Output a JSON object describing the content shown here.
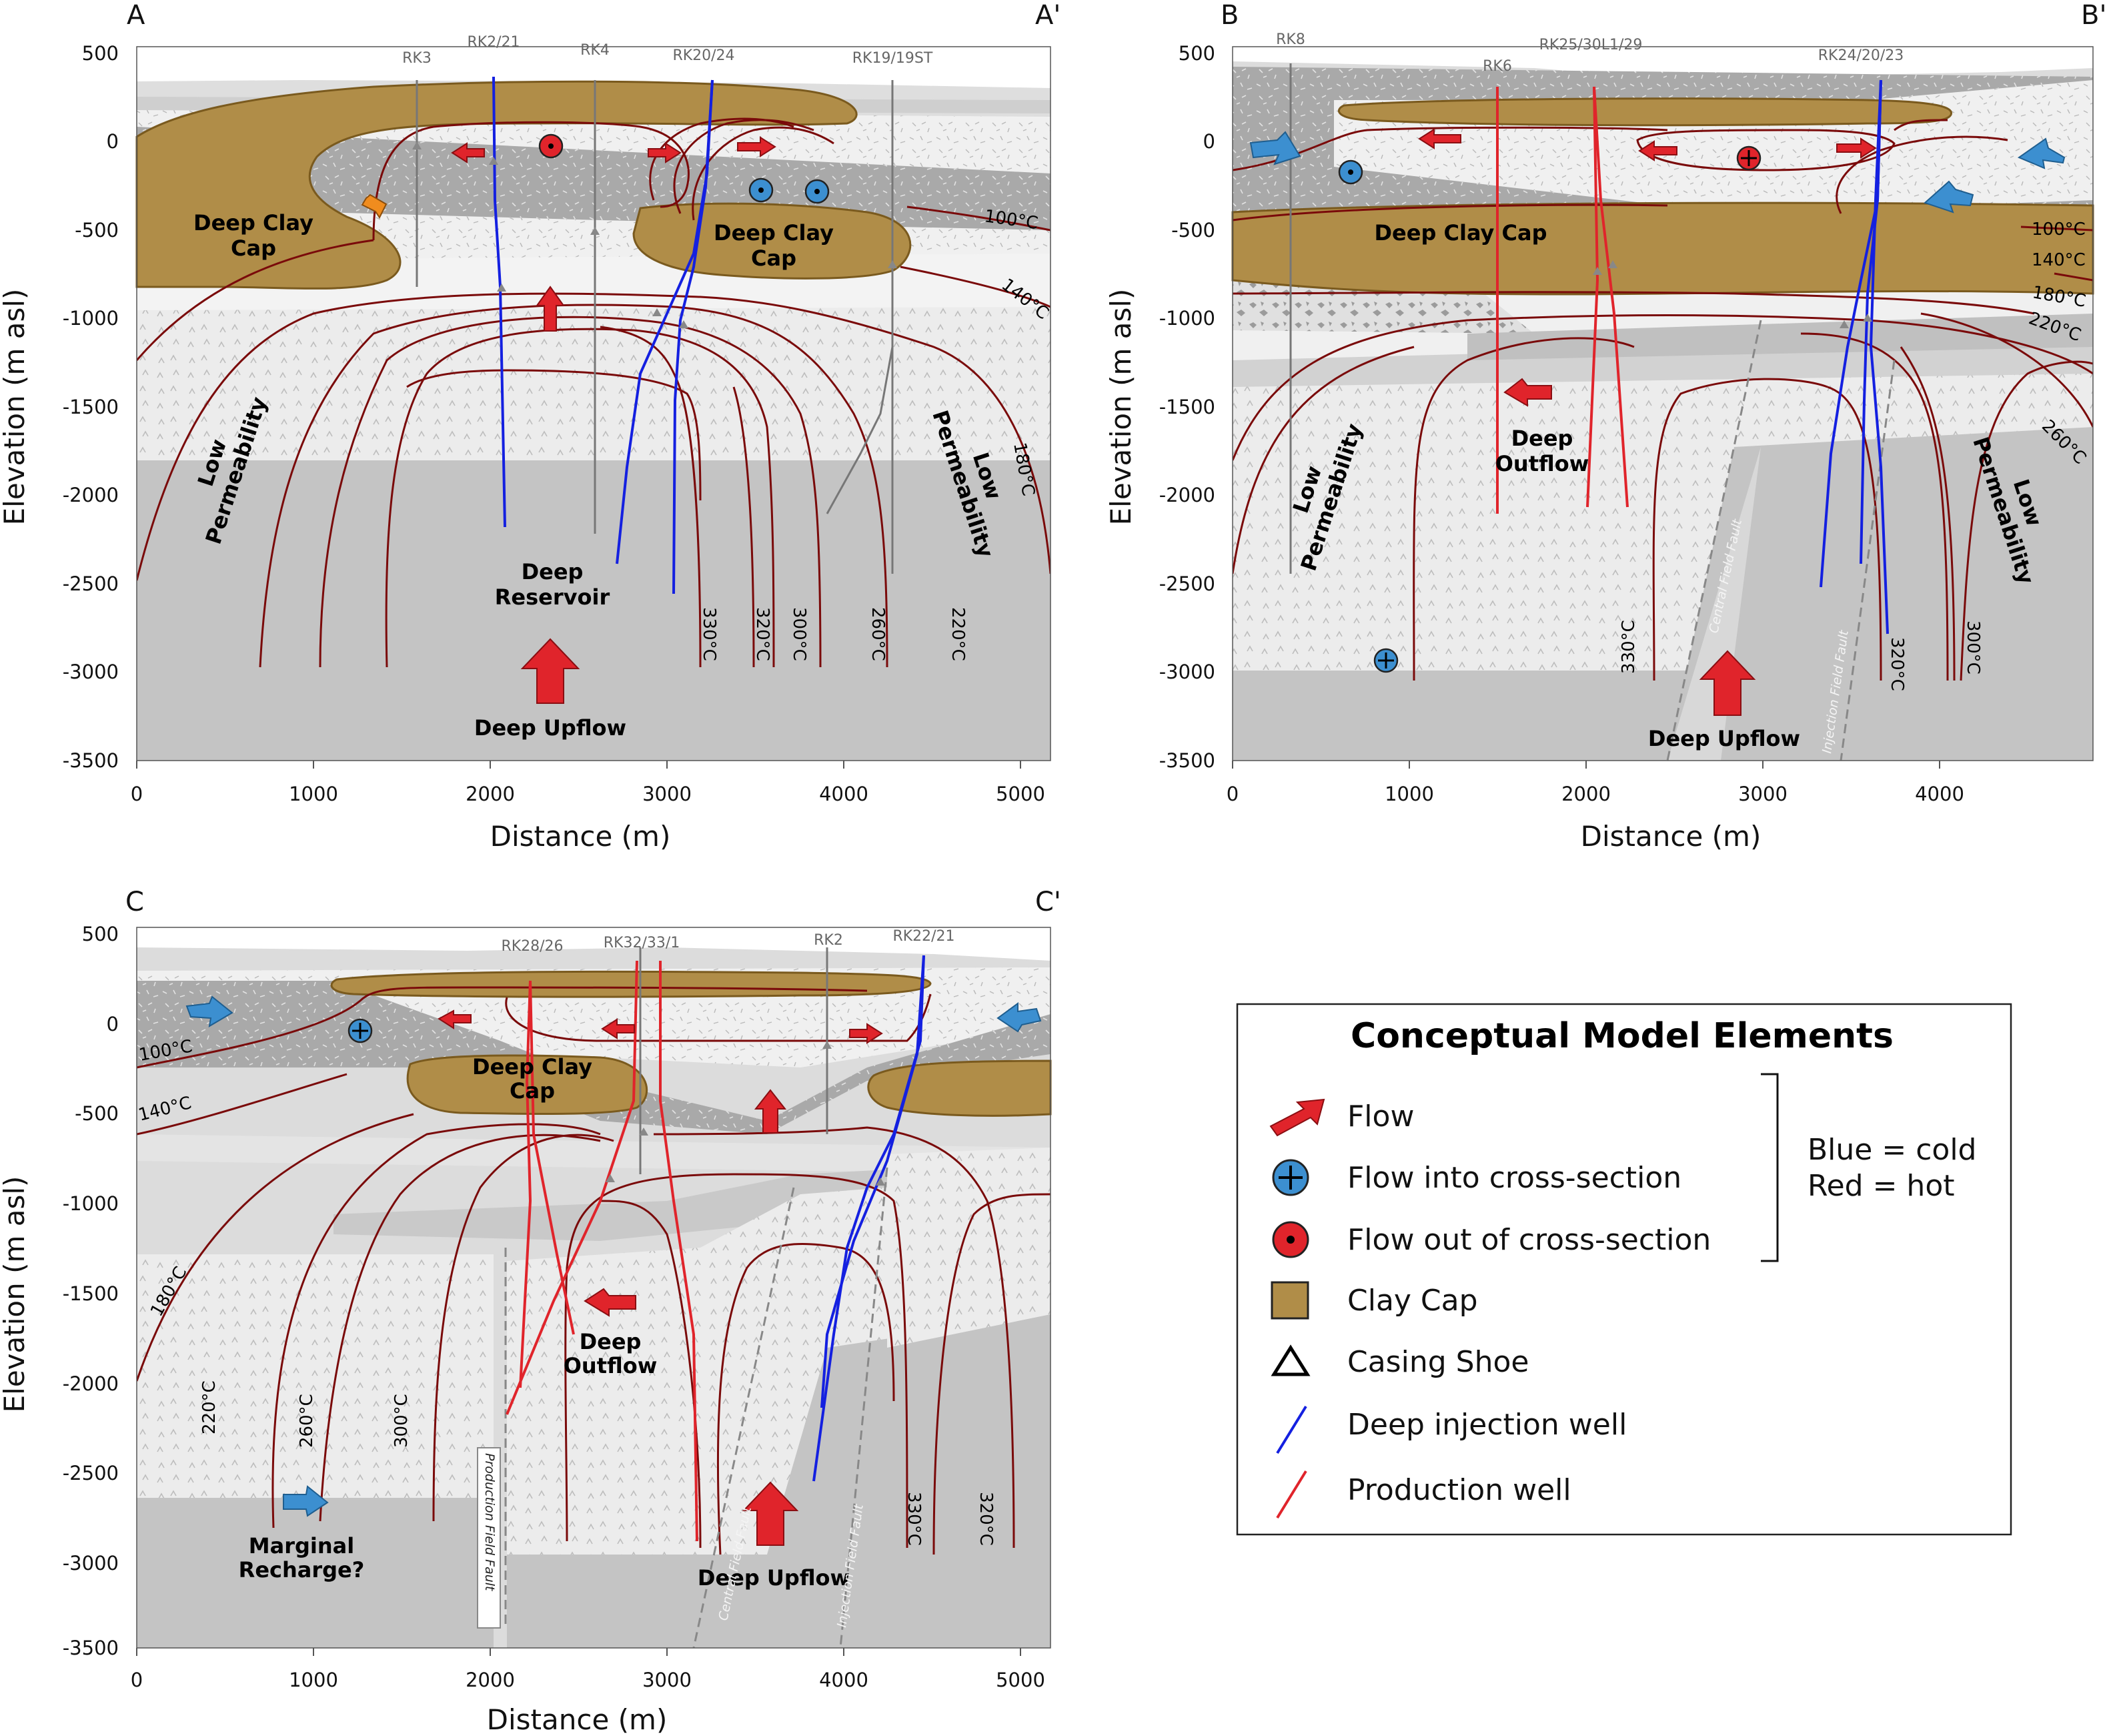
{
  "colors": {
    "clay": "#b08d48",
    "clay_stroke": "#7a5a1e",
    "isotherm": "#7a0a0a",
    "hot": "#e0242b",
    "cold": "#3c8fd0",
    "injection": "#1420e0",
    "production": "#e0242b",
    "grey_dark": "#b8b8b8",
    "grey_mid": "#c9c9c9",
    "grey_light": "#e9e9e9",
    "well_grey": "#777777",
    "orange": "#f08c1e"
  },
  "icons": {
    "flow": "red-arrow-icon",
    "flow_into": "circle-plus-icon",
    "flow_out": "circle-dot-icon",
    "clay": "clay-square-icon",
    "casing": "triangle-icon",
    "injection": "blue-line-icon",
    "production": "red-line-icon"
  },
  "shared": {
    "xlabel": "Distance (m)",
    "ylabel": "Elevation (m asl)",
    "y_ticks": [
      "500",
      "0",
      "-500",
      "-1000",
      "-1500",
      "-2000",
      "-2500",
      "-3000",
      "-3500"
    ]
  },
  "panels": {
    "A": {
      "left_label": "A",
      "right_label": "A'",
      "x_ticks": [
        "0",
        "1000",
        "2000",
        "3000",
        "4000",
        "5000"
      ],
      "wells": [
        "RK3",
        "RK2/21",
        "RK4",
        "RK20/24",
        "RK19/19ST"
      ],
      "annotations": {
        "clay_left": [
          "Deep Clay",
          "Cap"
        ],
        "clay_right": [
          "Deep Clay",
          "Cap"
        ],
        "low_perm_left": [
          "Low",
          "Permeability"
        ],
        "low_perm_right": [
          "Low",
          "Permeability"
        ],
        "reservoir": [
          "Deep",
          "Reservoir"
        ],
        "upflow": "Deep Upflow"
      },
      "isotherms": [
        "100°C",
        "140°C",
        "180°C",
        "330°C",
        "320°C",
        "300°C",
        "260°C",
        "220°C"
      ]
    },
    "B": {
      "left_label": "B",
      "right_label": "B'",
      "x_ticks": [
        "0",
        "1000",
        "2000",
        "3000",
        "4000"
      ],
      "wells": [
        "RK8",
        "RK6",
        "RK25/30L1/29",
        "RK24/20/23"
      ],
      "annotations": {
        "clay": "Deep Clay Cap",
        "outflow": [
          "Deep",
          "Outflow"
        ],
        "low_perm_left": [
          "Low",
          "Permeability"
        ],
        "low_perm_right": [
          "Low",
          "Permeability"
        ],
        "upflow": "Deep Upflow",
        "fault_central": "Central Field Fault",
        "fault_injection": "Injection Field Fault"
      },
      "isotherms": [
        "100°C",
        "140°C",
        "180°C",
        "220°C",
        "260°C",
        "300°C",
        "320°C",
        "330°C"
      ]
    },
    "C": {
      "left_label": "C",
      "right_label": "C'",
      "x_ticks": [
        "0",
        "1000",
        "2000",
        "3000",
        "4000",
        "5000"
      ],
      "wells": [
        "RK28/26",
        "RK32/33/1",
        "RK2",
        "RK22/21"
      ],
      "annotations": {
        "clay": [
          "Deep Clay",
          "Cap"
        ],
        "outflow": [
          "Deep",
          "Outflow"
        ],
        "recharge": [
          "Marginal",
          "Recharge?"
        ],
        "upflow": "Deep Upflow",
        "fault_production": "Production Field Fault",
        "fault_central": "Central Field Fault",
        "fault_injection": "Injection Field Fault"
      },
      "isotherms": [
        "100°C",
        "140°C",
        "180°C",
        "220°C",
        "260°C",
        "300°C",
        "330°C",
        "320°C"
      ]
    }
  },
  "legend": {
    "title": "Conceptual Model Elements",
    "items": [
      "Flow",
      "Flow into cross-section",
      "Flow out of cross-section",
      "Clay Cap",
      "Casing Shoe",
      "Deep injection well",
      "Production well"
    ],
    "note_line1": "Blue = cold",
    "note_line2": "Red = hot"
  }
}
